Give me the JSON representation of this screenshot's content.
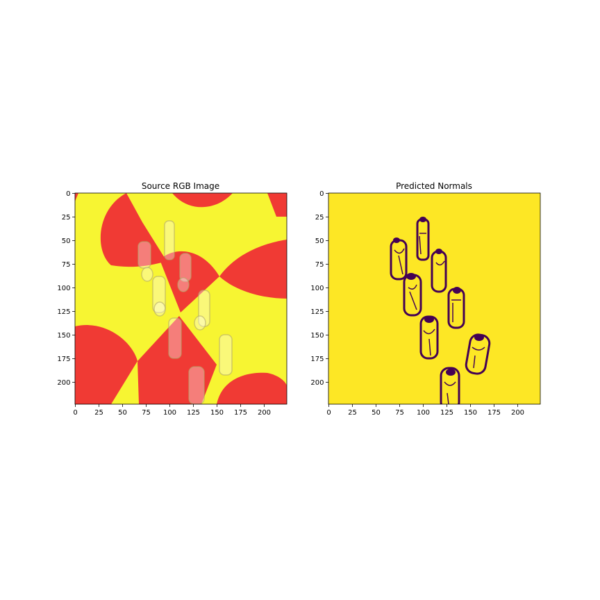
{
  "figure": {
    "panels": [
      {
        "id": "source",
        "title": "Source RGB Image",
        "xticks": [
          "0",
          "25",
          "50",
          "75",
          "100",
          "125",
          "150",
          "175",
          "200"
        ],
        "yticks": [
          "0",
          "25",
          "50",
          "75",
          "100",
          "125",
          "150",
          "175",
          "200"
        ]
      },
      {
        "id": "normals",
        "title": "Predicted Normals",
        "xticks": [
          "0",
          "25",
          "50",
          "75",
          "100",
          "125",
          "150",
          "175",
          "200"
        ],
        "yticks": [
          "0",
          "25",
          "50",
          "75",
          "100",
          "125",
          "150",
          "175",
          "200"
        ]
      }
    ],
    "colors": {
      "checker_yellow": "#f7f532",
      "checker_red": "#f03a34",
      "mask_background": "#fde725",
      "mask_outline": "#440154"
    }
  }
}
